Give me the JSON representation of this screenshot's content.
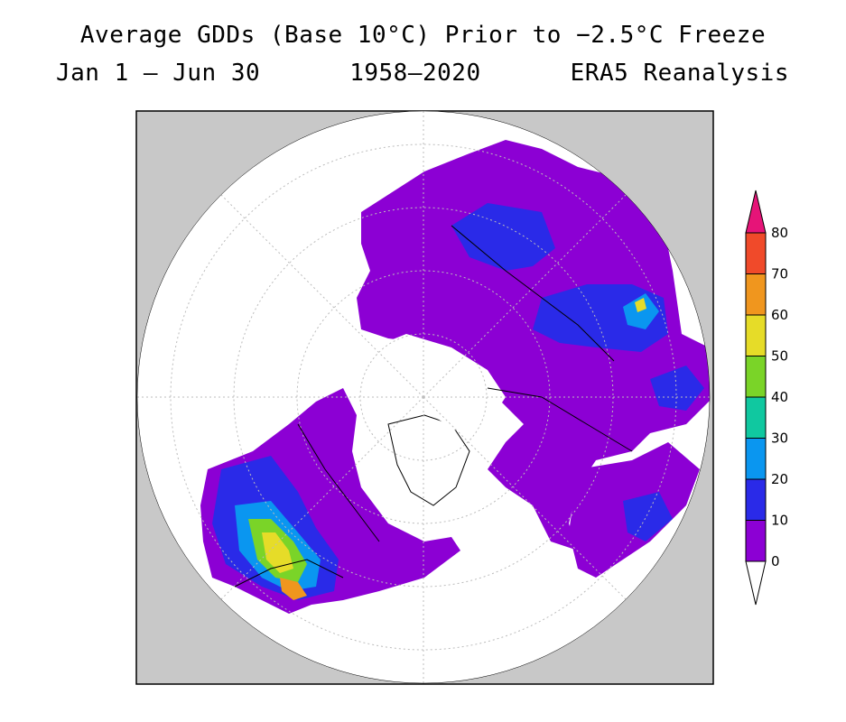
{
  "title": {
    "line1": "Average GDDs (Base 10°C) Prior to −2.5°C Freeze",
    "line2_left": "Jan 1 — Jun 30",
    "line2_mid": "1958—2020",
    "line2_right": "ERA5 Reanalysis"
  },
  "colorbar": {
    "labels": [
      "0",
      "10",
      "20",
      "30",
      "40",
      "50",
      "60",
      "70",
      "80"
    ],
    "colors": [
      "#8c00d4",
      "#2a2ae8",
      "#0a96f0",
      "#10c8a0",
      "#7ad428",
      "#e6dc28",
      "#f0961e",
      "#f04a2a",
      "#e61478"
    ],
    "under_color": "#ffffff",
    "over_color": "#e61478"
  },
  "map": {
    "projection": "north-polar-stereographic",
    "background": "#c8c8c8",
    "land_no_freeze": "#ffffff",
    "base_color": "#8c00d4"
  }
}
